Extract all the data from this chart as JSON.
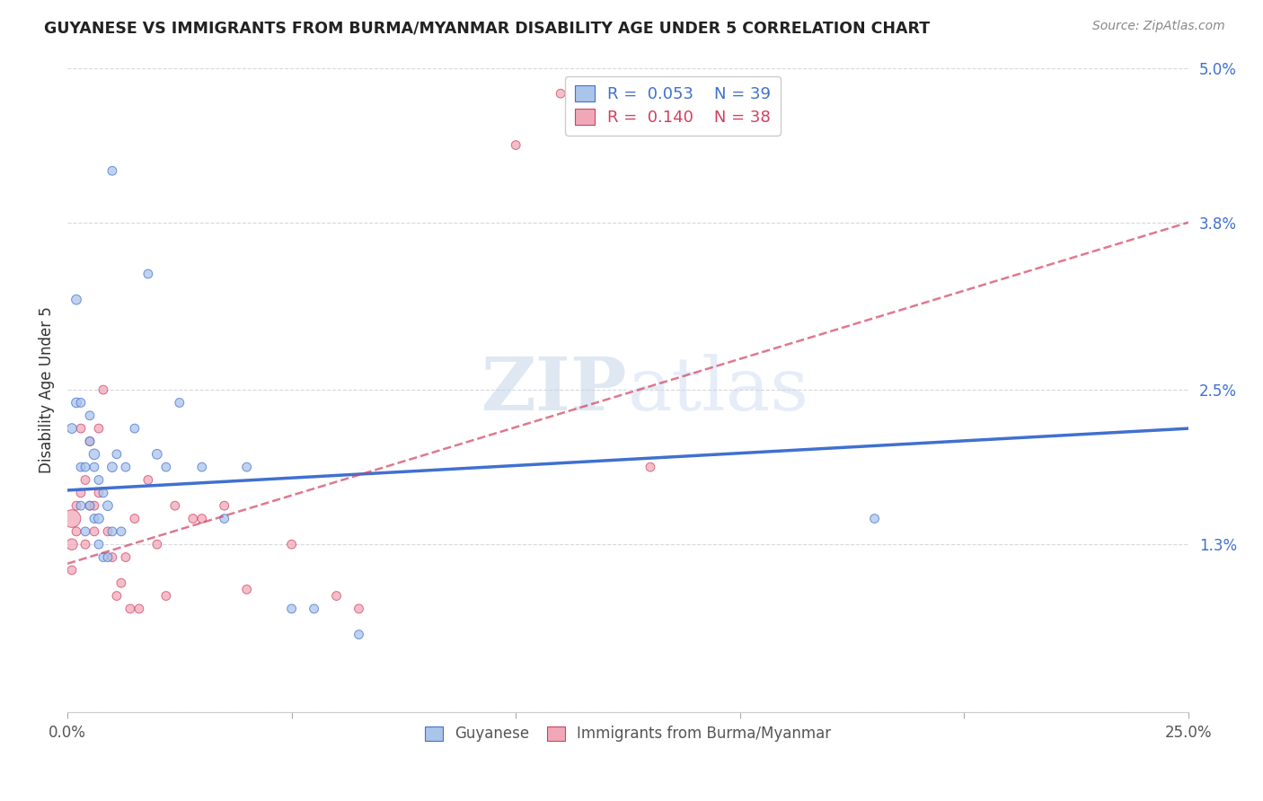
{
  "title": "GUYANESE VS IMMIGRANTS FROM BURMA/MYANMAR DISABILITY AGE UNDER 5 CORRELATION CHART",
  "source": "Source: ZipAtlas.com",
  "ylabel_label": "Disability Age Under 5",
  "x_min": 0.0,
  "x_max": 0.25,
  "y_min": 0.0,
  "y_max": 0.05,
  "x_ticks": [
    0.0,
    0.05,
    0.1,
    0.15,
    0.2,
    0.25
  ],
  "x_tick_labels": [
    "0.0%",
    "",
    "",
    "",
    "",
    "25.0%"
  ],
  "y_ticks": [
    0.0,
    0.013,
    0.025,
    0.038,
    0.05
  ],
  "y_tick_labels": [
    "",
    "1.3%",
    "2.5%",
    "3.8%",
    "5.0%"
  ],
  "color_blue": "#aac4ea",
  "color_pink": "#f0a8b8",
  "trendline_blue": "#4070d0",
  "trendline_pink": "#d04060",
  "watermark": "ZIPatlas",
  "background": "#ffffff",
  "grid_color": "#d8d8e0",
  "blue_trend_start_y": 0.0172,
  "blue_trend_end_y": 0.022,
  "pink_trend_start_y": 0.0115,
  "pink_trend_end_y": 0.038,
  "guyanese_x": [
    0.001,
    0.002,
    0.002,
    0.003,
    0.003,
    0.003,
    0.004,
    0.004,
    0.005,
    0.005,
    0.005,
    0.006,
    0.006,
    0.006,
    0.007,
    0.007,
    0.007,
    0.008,
    0.008,
    0.009,
    0.009,
    0.01,
    0.01,
    0.011,
    0.012,
    0.013,
    0.015,
    0.018,
    0.02,
    0.022,
    0.025,
    0.03,
    0.035,
    0.04,
    0.05,
    0.055,
    0.065,
    0.18,
    0.01
  ],
  "guyanese_y": [
    0.022,
    0.024,
    0.032,
    0.024,
    0.019,
    0.016,
    0.019,
    0.014,
    0.023,
    0.021,
    0.016,
    0.02,
    0.019,
    0.015,
    0.018,
    0.015,
    0.013,
    0.017,
    0.012,
    0.016,
    0.012,
    0.019,
    0.014,
    0.02,
    0.014,
    0.019,
    0.022,
    0.034,
    0.02,
    0.019,
    0.024,
    0.019,
    0.015,
    0.019,
    0.008,
    0.008,
    0.006,
    0.015,
    0.042
  ],
  "guyanese_size": [
    60,
    60,
    60,
    50,
    50,
    50,
    50,
    50,
    50,
    50,
    50,
    70,
    50,
    50,
    50,
    60,
    50,
    50,
    50,
    60,
    50,
    60,
    50,
    50,
    50,
    50,
    50,
    50,
    60,
    50,
    50,
    50,
    50,
    50,
    50,
    50,
    50,
    50,
    50
  ],
  "burma_x": [
    0.001,
    0.001,
    0.001,
    0.002,
    0.002,
    0.003,
    0.003,
    0.004,
    0.004,
    0.005,
    0.005,
    0.006,
    0.006,
    0.007,
    0.007,
    0.008,
    0.009,
    0.01,
    0.011,
    0.012,
    0.013,
    0.014,
    0.015,
    0.016,
    0.018,
    0.02,
    0.022,
    0.024,
    0.028,
    0.03,
    0.035,
    0.04,
    0.05,
    0.06,
    0.065,
    0.1,
    0.11,
    0.13
  ],
  "burma_y": [
    0.015,
    0.013,
    0.011,
    0.016,
    0.014,
    0.022,
    0.017,
    0.018,
    0.013,
    0.021,
    0.016,
    0.014,
    0.016,
    0.022,
    0.017,
    0.025,
    0.014,
    0.012,
    0.009,
    0.01,
    0.012,
    0.008,
    0.015,
    0.008,
    0.018,
    0.013,
    0.009,
    0.016,
    0.015,
    0.015,
    0.016,
    0.0095,
    0.013,
    0.009,
    0.008,
    0.044,
    0.048,
    0.019
  ],
  "burma_size": [
    200,
    80,
    50,
    50,
    50,
    50,
    50,
    50,
    50,
    50,
    50,
    50,
    50,
    50,
    50,
    50,
    50,
    50,
    50,
    50,
    50,
    50,
    50,
    50,
    50,
    50,
    50,
    50,
    50,
    50,
    50,
    50,
    50,
    50,
    50,
    50,
    50,
    50
  ]
}
